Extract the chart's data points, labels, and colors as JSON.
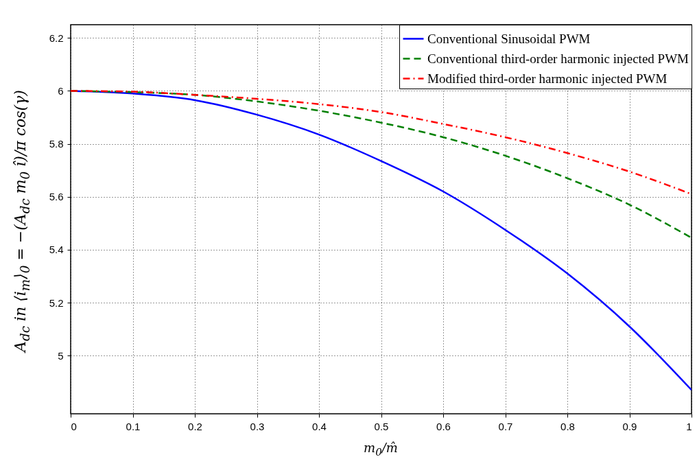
{
  "chart_data": {
    "type": "line",
    "xlabel": "m$_{0}$/m̂",
    "ylabel": "A$_{dc}$ in  ⟨i$_{m}$⟩$_{0}$ = −(A$_{dc}$ m$_{0}$ î)/π  cos(γ)",
    "x": [
      0,
      0.1,
      0.2,
      0.3,
      0.4,
      0.5,
      0.6,
      0.7,
      0.8,
      0.9,
      1.0
    ],
    "series": [
      {
        "name": "Conventional Sinusoidal PWM",
        "color": "#0000ff",
        "line_style": "solid",
        "values": [
          6.0,
          5.99,
          5.965,
          5.91,
          5.835,
          5.735,
          5.62,
          5.475,
          5.31,
          5.11,
          4.87
        ]
      },
      {
        "name": "Conventional third-order harmonic injected PWM",
        "color": "#008000",
        "line_style": "dashed",
        "values": [
          6.0,
          5.995,
          5.985,
          5.96,
          5.925,
          5.88,
          5.825,
          5.755,
          5.67,
          5.57,
          5.445
        ]
      },
      {
        "name": "Modified third-order harmonic injected PWM",
        "color": "#ff0000",
        "line_style": "dashdot",
        "values": [
          6.0,
          5.997,
          5.985,
          5.97,
          5.95,
          5.92,
          5.875,
          5.825,
          5.765,
          5.695,
          5.61
        ]
      }
    ],
    "xlim": [
      0,
      1
    ],
    "xticks": [
      0,
      0.1,
      0.2,
      0.3,
      0.4,
      0.5,
      0.6,
      0.7,
      0.8,
      0.9,
      1
    ],
    "ylim": [
      4.78,
      6.25
    ],
    "yticks": [
      5,
      5.2,
      5.4,
      5.6,
      5.8,
      6,
      6.2
    ],
    "grid": true,
    "legend": "top right"
  }
}
